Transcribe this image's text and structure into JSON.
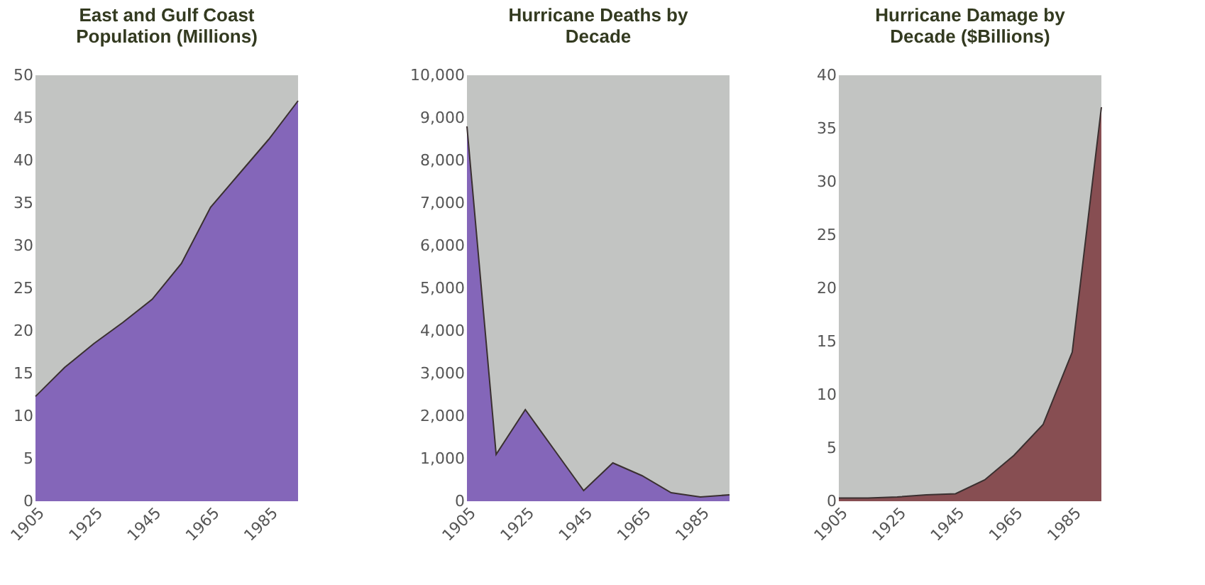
{
  "chart_data": [
    {
      "type": "area",
      "title": "East and Gulf Coast\nPopulation (Millions)",
      "categories": [
        "1905",
        null,
        "1925",
        null,
        "1945",
        null,
        "1965",
        null,
        "1985",
        null
      ],
      "series": [
        {
          "color": "#6a3fb5",
          "values": [
            12.3,
            15.7,
            18.5,
            21,
            23.7,
            27.9,
            34.5,
            38.5,
            42.5,
            47
          ]
        }
      ],
      "ylim": [
        0,
        50
      ],
      "yticks": [
        0,
        5,
        10,
        15,
        20,
        25,
        30,
        35,
        40,
        45,
        50
      ],
      "grid": false
    },
    {
      "type": "area",
      "title": "Hurricane Deaths by\nDecade",
      "categories": [
        "1905",
        null,
        "1925",
        null,
        "1945",
        null,
        "1965",
        null,
        "1985",
        null
      ],
      "series": [
        {
          "color": "#6a3fb5",
          "values": [
            8800,
            1100,
            2150,
            1200,
            250,
            900,
            600,
            200,
            100,
            150
          ]
        }
      ],
      "ylim": [
        0,
        10000
      ],
      "yticks": [
        0,
        {
          "value": 1000,
          "label": "1,000"
        },
        {
          "value": 2000,
          "label": "2,000"
        },
        {
          "value": 3000,
          "label": "3,000"
        },
        {
          "value": 4000,
          "label": "4,000"
        },
        {
          "value": 5000,
          "label": "5,000"
        },
        {
          "value": 6000,
          "label": "6,000"
        },
        {
          "value": 7000,
          "label": "7,000"
        },
        {
          "value": 8000,
          "label": "8,000"
        },
        {
          "value": 9000,
          "label": "9,000"
        },
        {
          "value": 10000,
          "label": "10,000"
        }
      ],
      "grid": false
    },
    {
      "type": "area",
      "title": "Hurricane Damage by\nDecade ($Billions)",
      "categories": [
        "1905",
        null,
        "1925",
        null,
        "1945",
        null,
        "1965",
        null,
        "1985",
        null
      ],
      "series": [
        {
          "color": "#6e1c22",
          "values": [
            0.3,
            0.3,
            0.4,
            0.6,
            0.7,
            2,
            4.3,
            7.2,
            14,
            37
          ]
        }
      ],
      "ylim": [
        0,
        40
      ],
      "yticks": [
        0,
        5,
        10,
        15,
        20,
        25,
        30,
        35,
        40
      ],
      "grid": false
    }
  ]
}
